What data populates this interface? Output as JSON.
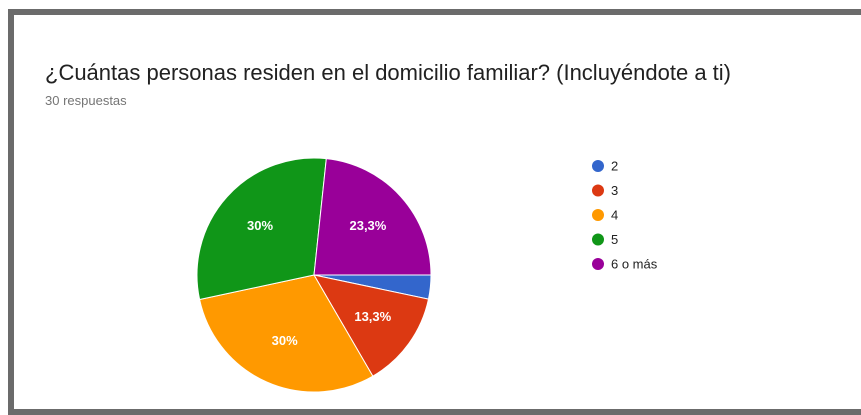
{
  "chart_data": {
    "type": "pie",
    "title": "¿Cuántas personas residen en el domicilio familiar? (Incluyéndote a ti)",
    "subtitle": "30 respuestas",
    "categories": [
      "2",
      "3",
      "4",
      "5",
      "6 o más"
    ],
    "values": [
      3.3,
      13.3,
      30,
      30,
      23.3
    ],
    "value_labels": [
      null,
      "13,3%",
      "30%",
      "30%",
      "23,3%"
    ],
    "colors": [
      "#3366cc",
      "#dc3912",
      "#ff9900",
      "#109618",
      "#990099"
    ],
    "legend": "right"
  }
}
